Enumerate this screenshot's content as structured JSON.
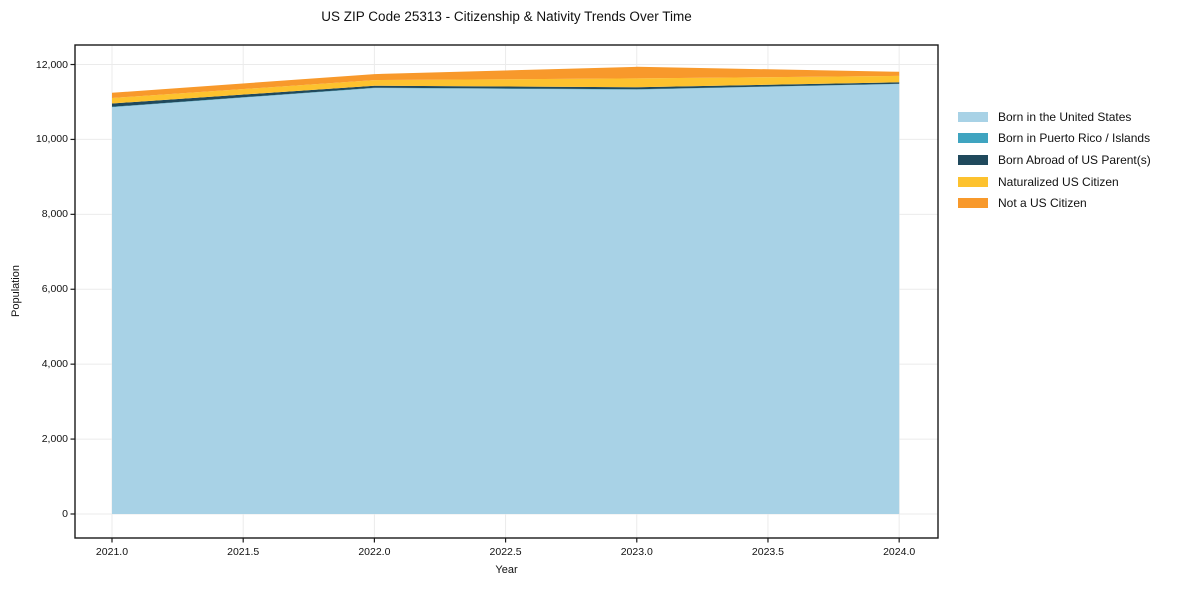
{
  "chart_data": {
    "type": "area",
    "stacked": true,
    "title": "US ZIP Code 25313 - Citizenship & Nativity Trends Over Time",
    "xlabel": "Year",
    "ylabel": "Population",
    "x": [
      2021,
      2022,
      2023,
      2024
    ],
    "series": [
      {
        "name": "Born in the United States",
        "color": "#A8D2E6",
        "values": [
          10860,
          11370,
          11330,
          11480
        ]
      },
      {
        "name": "Born in Puerto Rico / Islands",
        "color": "#3FA4C0",
        "values": [
          10,
          10,
          10,
          5
        ]
      },
      {
        "name": "Born Abroad of US Parent(s)",
        "color": "#20495C",
        "values": [
          90,
          55,
          55,
          40
        ]
      },
      {
        "name": "Naturalized US Citizen",
        "color": "#FDC22E",
        "values": [
          145,
          150,
          235,
          170
        ]
      },
      {
        "name": "Not a US Citizen",
        "color": "#F8992B",
        "values": [
          140,
          160,
          310,
          110
        ]
      }
    ],
    "xticks": {
      "values": [
        2021.0,
        2021.5,
        2022.0,
        2022.5,
        2023.0,
        2023.5,
        2024.0
      ],
      "labels": [
        "2021.0",
        "2021.5",
        "2022.0",
        "2022.5",
        "2023.0",
        "2023.5",
        "2024.0"
      ]
    },
    "yticks": {
      "values": [
        0,
        2000,
        4000,
        6000,
        8000,
        10000,
        12000
      ],
      "labels": [
        "0",
        "2,000",
        "4,000",
        "6,000",
        "8,000",
        "10,000",
        "12,000"
      ]
    },
    "xlim": [
      2020.859,
      2024.148
    ],
    "ylim": [
      -641,
      12521
    ],
    "grid": true,
    "legend_position": "right-outside",
    "background_color": "#ffffff",
    "grid_color": "#ebebeb",
    "frame_color": "#1a1a1a",
    "text_color": "#111111"
  }
}
